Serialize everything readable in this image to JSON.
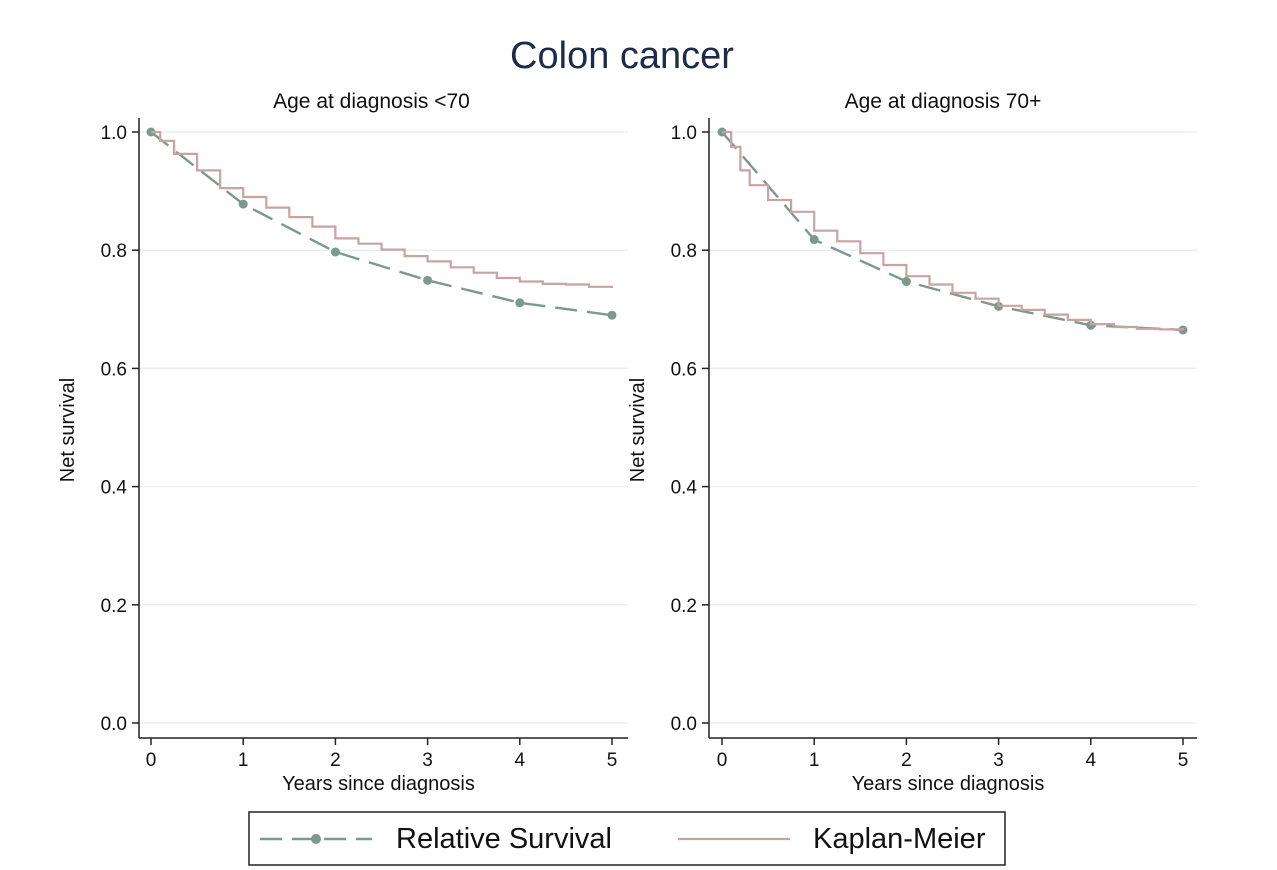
{
  "chart_data": {
    "type": "line",
    "title": "Colon cancer",
    "legend": {
      "placement": "bottom",
      "items": [
        "Relative Survival",
        "Kaplan-Meier"
      ]
    },
    "colors": {
      "relative_survival": "#7b998f",
      "kaplan_meier": "#c9a3a0",
      "gridline": "#eaf0ef",
      "axis": "#222222",
      "title": "#1c2b4a"
    },
    "grid": true,
    "panels": [
      {
        "subtitle": "Age at diagnosis <70",
        "xlabel": "Years since diagnosis",
        "ylabel": "Net survival",
        "xlim": [
          0,
          5
        ],
        "ylim": [
          0,
          1
        ],
        "xticks": [
          "0",
          "1",
          "2",
          "3",
          "4",
          "5"
        ],
        "yticks": [
          "0.0",
          "0.2",
          "0.4",
          "0.6",
          "0.8",
          "1.0"
        ],
        "series": [
          {
            "name": "Relative Survival",
            "style": "dashed-with-markers",
            "x": [
              0,
              1,
              2,
              3,
              4,
              5
            ],
            "y": [
              1.0,
              0.878,
              0.797,
              0.749,
              0.711,
              0.69
            ]
          },
          {
            "name": "Kaplan-Meier",
            "style": "step",
            "x": [
              0,
              0.1,
              0.25,
              0.5,
              0.75,
              1.0,
              1.25,
              1.5,
              1.75,
              2.0,
              2.25,
              2.5,
              2.75,
              3.0,
              3.25,
              3.5,
              3.75,
              4.0,
              4.25,
              4.5,
              4.75,
              5.0
            ],
            "y": [
              1.0,
              0.985,
              0.963,
              0.935,
              0.905,
              0.89,
              0.872,
              0.856,
              0.84,
              0.82,
              0.811,
              0.801,
              0.79,
              0.781,
              0.771,
              0.762,
              0.753,
              0.747,
              0.743,
              0.742,
              0.738,
              0.736
            ]
          }
        ]
      },
      {
        "subtitle": "Age at diagnosis 70+",
        "xlabel": "Years since diagnosis",
        "ylabel": "Net survival",
        "xlim": [
          0,
          5
        ],
        "ylim": [
          0,
          1
        ],
        "xticks": [
          "0",
          "1",
          "2",
          "3",
          "4",
          "5"
        ],
        "yticks": [
          "0.0",
          "0.2",
          "0.4",
          "0.6",
          "0.8",
          "1.0"
        ],
        "series": [
          {
            "name": "Relative Survival",
            "style": "dashed-with-markers",
            "x": [
              0,
              1,
              2,
              3,
              4,
              5
            ],
            "y": [
              1.0,
              0.818,
              0.747,
              0.705,
              0.673,
              0.665
            ]
          },
          {
            "name": "Kaplan-Meier",
            "style": "step",
            "x": [
              0,
              0.1,
              0.2,
              0.3,
              0.5,
              0.75,
              1.0,
              1.25,
              1.5,
              1.75,
              2.0,
              2.25,
              2.5,
              2.75,
              3.0,
              3.25,
              3.5,
              3.75,
              4.0,
              4.25,
              4.5,
              4.75,
              5.0
            ],
            "y": [
              1.0,
              0.975,
              0.935,
              0.91,
              0.885,
              0.865,
              0.833,
              0.815,
              0.795,
              0.775,
              0.756,
              0.742,
              0.728,
              0.718,
              0.706,
              0.699,
              0.691,
              0.682,
              0.675,
              0.67,
              0.667,
              0.666,
              0.665
            ]
          }
        ]
      }
    ]
  }
}
